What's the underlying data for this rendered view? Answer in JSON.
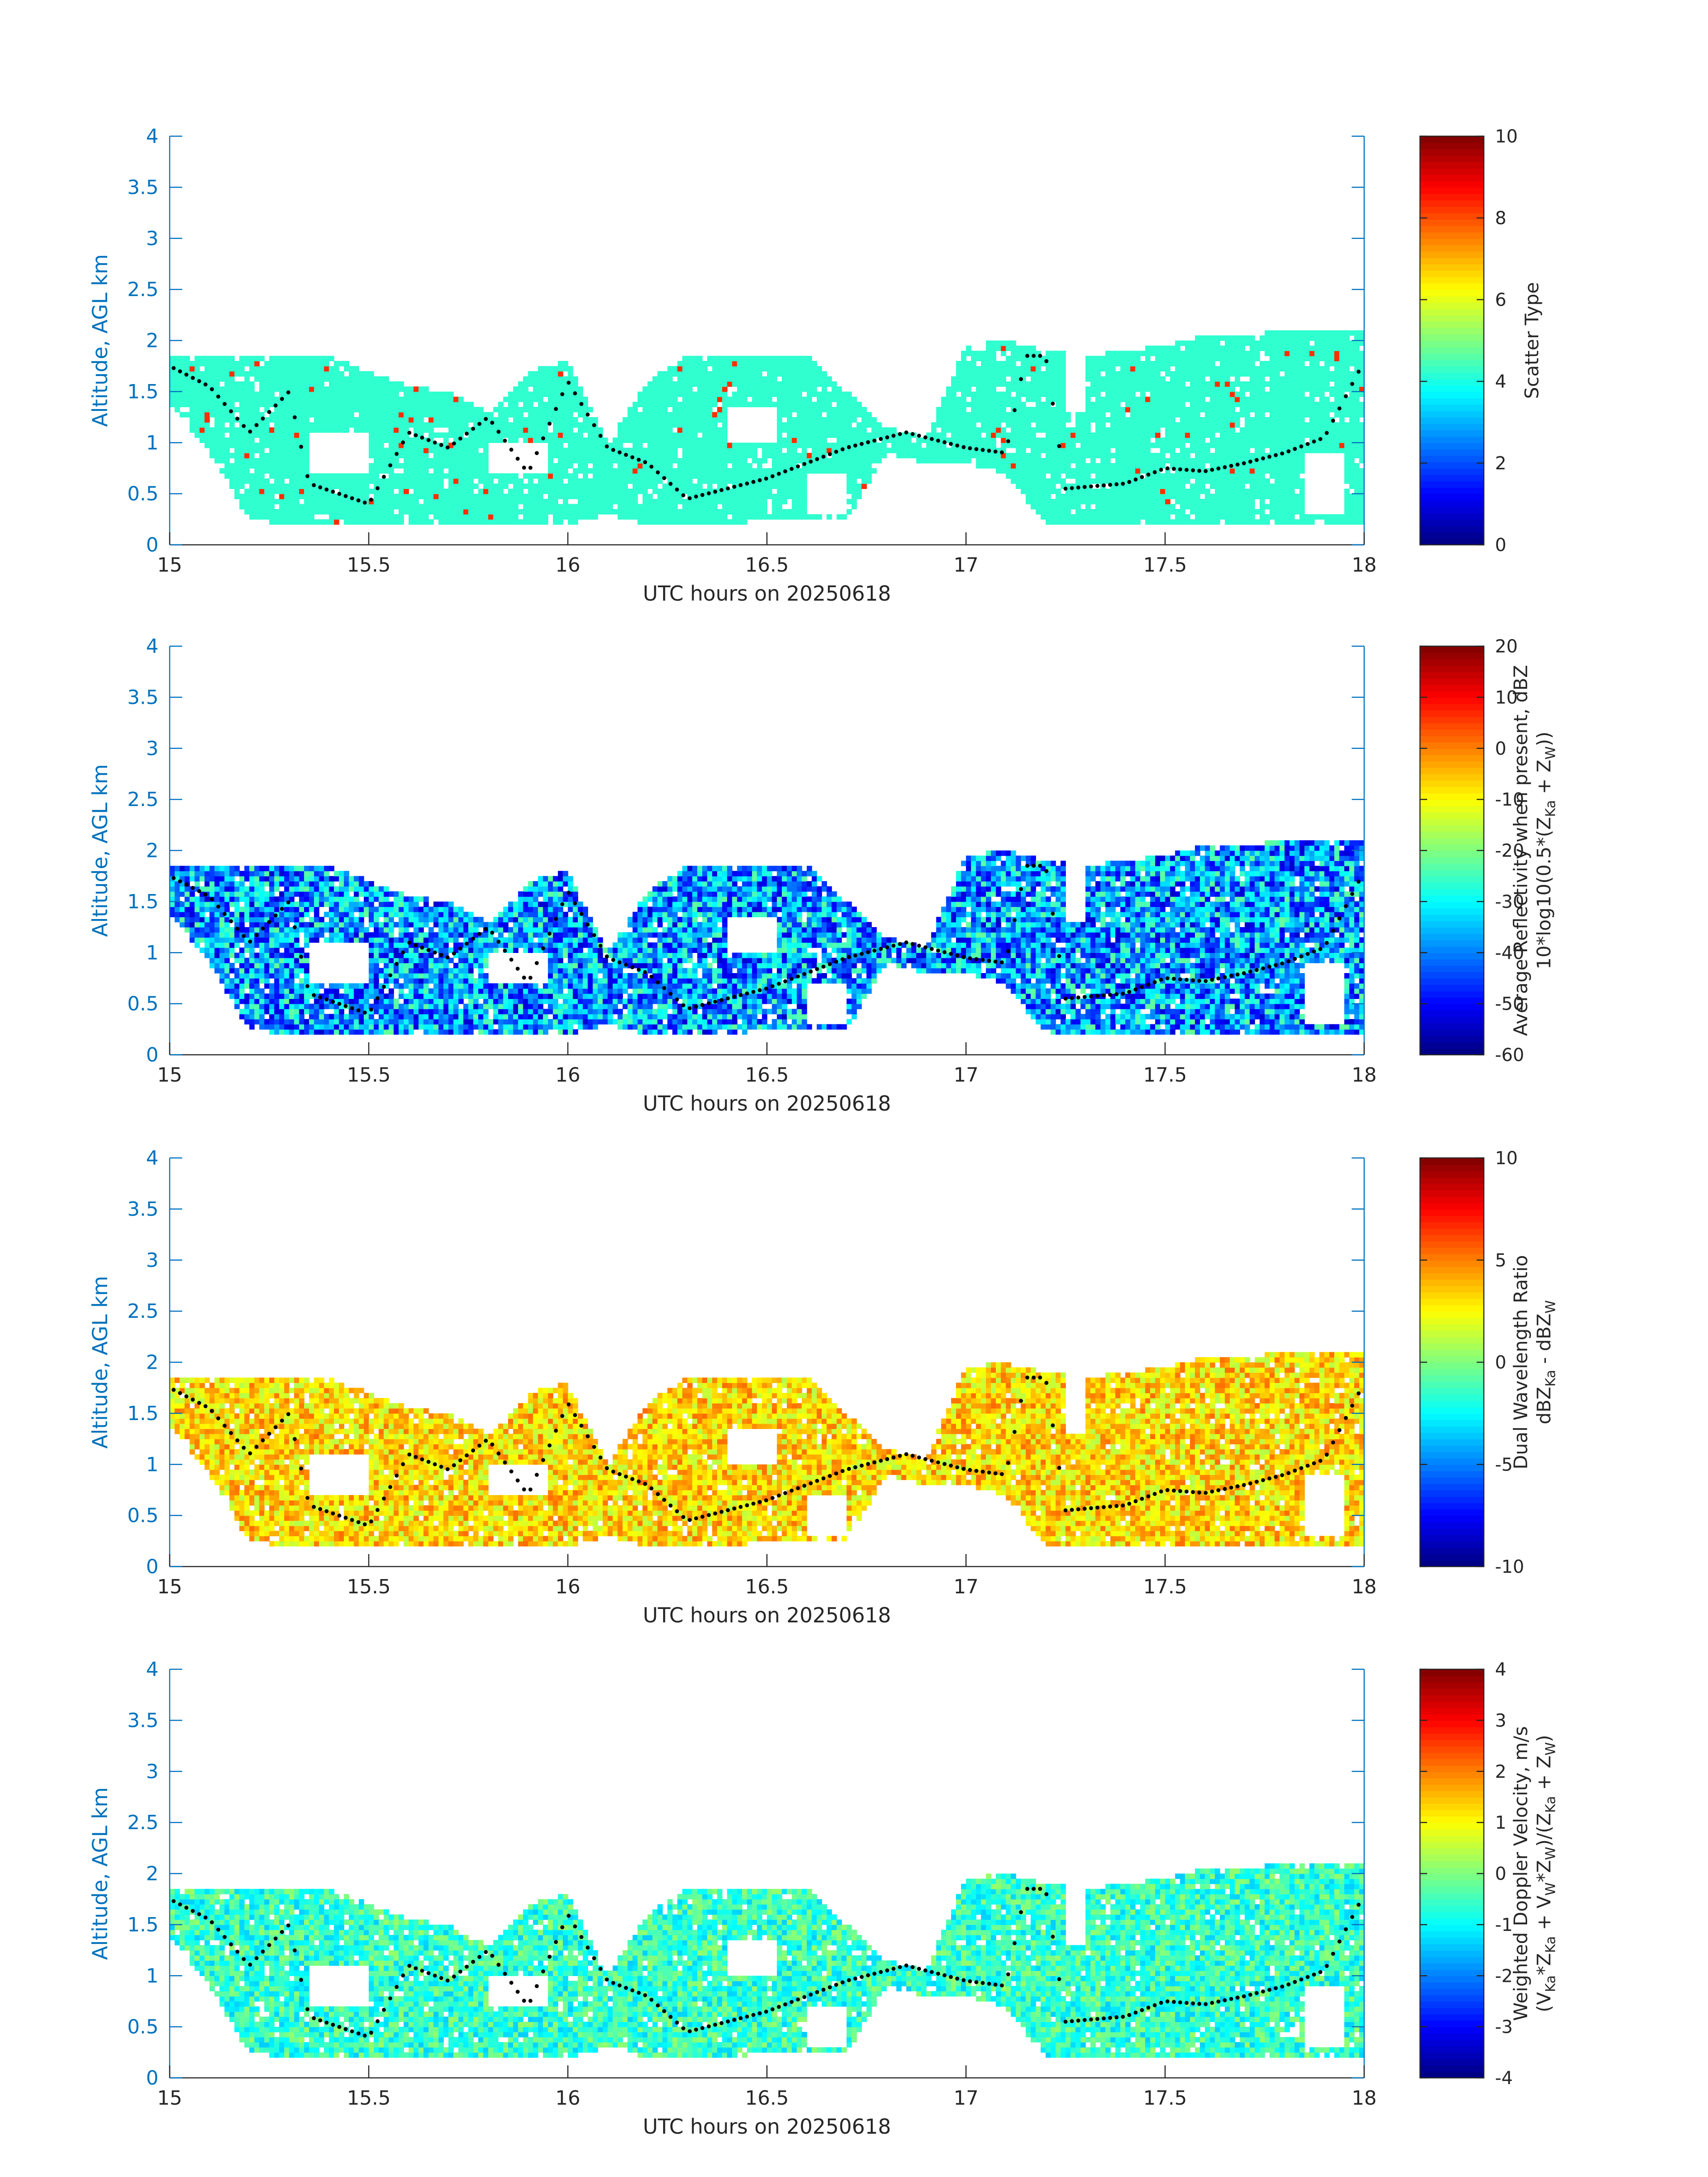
{
  "colors": {
    "axis_blue": "#0072BD",
    "text_dark": "#262626",
    "panel1_fill": "#30FFD0",
    "panel1_spots": "#FF4A1A",
    "trace_dots": "#000000"
  },
  "chart_data": [
    {
      "type": "heatmap",
      "xlabel": "UTC hours on 20250618",
      "ylabel": "Altitude, AGL km",
      "xlim": [
        15,
        18
      ],
      "ylim": [
        0,
        4
      ],
      "xticks": [
        "15",
        "15.5",
        "16",
        "16.5",
        "17",
        "17.5",
        "18"
      ],
      "yticks": [
        "0",
        "0.5",
        "1",
        "1.5",
        "2",
        "2.5",
        "3",
        "3.5",
        "4"
      ],
      "colorbar": {
        "label_lines": [
          "Scatter Type"
        ],
        "limits": [
          0,
          10
        ],
        "ticks": [
          "0",
          "2",
          "4",
          "6",
          "8",
          "10"
        ]
      },
      "field": {
        "base": 4.2,
        "spread": 0.0,
        "spot_value": 8.3,
        "spot_fraction": 0.015
      }
    },
    {
      "type": "heatmap",
      "xlabel": "UTC hours on 20250618",
      "ylabel": "Altitude, AGL km",
      "xlim": [
        15,
        18
      ],
      "ylim": [
        0,
        4
      ],
      "xticks": [
        "15",
        "15.5",
        "16",
        "16.5",
        "17",
        "17.5",
        "18"
      ],
      "yticks": [
        "0",
        "0.5",
        "1",
        "1.5",
        "2",
        "2.5",
        "3",
        "3.5",
        "4"
      ],
      "colorbar": {
        "label_lines": [
          "Average Reflectivity when present, dBZ",
          "10*log10(0.5*(Z_Ka + Z_W))"
        ],
        "limits": [
          -60,
          20
        ],
        "ticks": [
          "-60",
          "-50",
          "-40",
          "-30",
          "-20",
          "-10",
          "0",
          "10",
          "20"
        ]
      },
      "field": {
        "base": -38,
        "spread": 16,
        "spot_value": null,
        "spot_fraction": 0
      }
    },
    {
      "type": "heatmap",
      "xlabel": "UTC hours on 20250618",
      "ylabel": "Altitude, AGL km",
      "xlim": [
        15,
        18
      ],
      "ylim": [
        0,
        4
      ],
      "xticks": [
        "15",
        "15.5",
        "16",
        "16.5",
        "17",
        "17.5",
        "18"
      ],
      "yticks": [
        "0",
        "0.5",
        "1",
        "1.5",
        "2",
        "2.5",
        "3",
        "3.5",
        "4"
      ],
      "colorbar": {
        "label_lines": [
          "Dual Wavelength Ratio",
          "dBZ_Ka - dBZ_W"
        ],
        "limits": [
          -10,
          10
        ],
        "ticks": [
          "-10",
          "-5",
          "0",
          "5",
          "10"
        ]
      },
      "field": {
        "base": 3.2,
        "spread": 2.2,
        "spot_value": null,
        "spot_fraction": 0
      }
    },
    {
      "type": "heatmap",
      "xlabel": "UTC hours on 20250618",
      "ylabel": "Altitude, AGL km",
      "xlim": [
        15,
        18
      ],
      "ylim": [
        0,
        4
      ],
      "xticks": [
        "15",
        "15.5",
        "16",
        "16.5",
        "17",
        "17.5",
        "18"
      ],
      "yticks": [
        "0",
        "0.5",
        "1",
        "1.5",
        "2",
        "2.5",
        "3",
        "3.5",
        "4"
      ],
      "colorbar": {
        "label_lines": [
          "Weighted Doppler Velocity, m/s",
          "(V_Ka*Z_Ka + V_W*Z_W)/(Z_Ka + Z_W)"
        ],
        "limits": [
          -4,
          4
        ],
        "ticks": [
          "-4",
          "-3",
          "-2",
          "-1",
          "0",
          "1",
          "2",
          "3",
          "4"
        ]
      },
      "field": {
        "base": -0.6,
        "spread": 0.8,
        "spot_value": null,
        "spot_fraction": 0
      }
    }
  ],
  "echo_boundary": {
    "x": [
      15.0,
      15.1,
      15.2,
      15.3,
      15.4,
      15.5,
      15.6,
      15.7,
      15.8,
      15.9,
      16.0,
      16.1,
      16.2,
      16.3,
      16.4,
      16.5,
      16.6,
      16.7,
      16.8,
      16.9,
      17.0,
      17.1,
      17.2,
      17.3,
      17.4,
      17.5,
      17.6,
      17.7,
      17.8,
      17.9,
      18.0
    ],
    "top": [
      1.85,
      1.85,
      1.85,
      1.85,
      1.85,
      1.7,
      1.55,
      1.5,
      1.3,
      1.7,
      1.8,
      1.0,
      1.6,
      1.85,
      1.85,
      1.85,
      1.85,
      1.5,
      1.15,
      1.05,
      1.95,
      2.0,
      1.9,
      1.85,
      1.9,
      1.95,
      2.05,
      2.05,
      2.1,
      2.1,
      2.1
    ],
    "bottom": [
      1.4,
      0.9,
      0.25,
      0.2,
      0.2,
      0.2,
      0.2,
      0.2,
      0.2,
      0.2,
      0.2,
      0.3,
      0.2,
      0.2,
      0.2,
      0.25,
      0.25,
      0.25,
      0.9,
      0.8,
      0.8,
      0.7,
      0.2,
      0.2,
      0.2,
      0.2,
      0.2,
      0.2,
      0.2,
      0.2,
      0.2
    ]
  },
  "echo_gaps": [
    {
      "x0": 15.35,
      "x1": 15.5,
      "y0": 0.7,
      "y1": 1.1
    },
    {
      "x0": 15.8,
      "x1": 15.95,
      "y0": 0.7,
      "y1": 1.0
    },
    {
      "x0": 16.4,
      "x1": 16.52,
      "y0": 1.0,
      "y1": 1.35
    },
    {
      "x0": 16.6,
      "x1": 16.7,
      "y0": 0.3,
      "y1": 0.7
    },
    {
      "x0": 17.25,
      "x1": 17.3,
      "y0": 1.3,
      "y1": 1.9
    },
    {
      "x0": 17.85,
      "x1": 17.95,
      "y0": 0.3,
      "y1": 0.9
    }
  ],
  "trace_line": {
    "x": [
      15.0,
      15.1,
      15.2,
      15.3,
      15.35,
      15.5,
      15.6,
      15.7,
      15.8,
      15.9,
      16.0,
      16.1,
      16.2,
      16.3,
      16.4,
      16.5,
      16.6,
      16.7,
      16.85,
      17.0,
      17.1,
      17.15,
      17.2,
      17.25,
      17.4,
      17.5,
      17.6,
      17.7,
      17.8,
      17.9,
      18.0
    ],
    "y": [
      1.75,
      1.55,
      1.1,
      1.5,
      0.6,
      0.4,
      1.1,
      0.95,
      1.25,
      0.7,
      1.6,
      0.95,
      0.8,
      0.45,
      0.55,
      0.65,
      0.8,
      0.95,
      1.1,
      0.95,
      0.9,
      1.85,
      1.85,
      0.55,
      0.6,
      0.75,
      0.72,
      0.8,
      0.9,
      1.05,
      1.8
    ]
  }
}
